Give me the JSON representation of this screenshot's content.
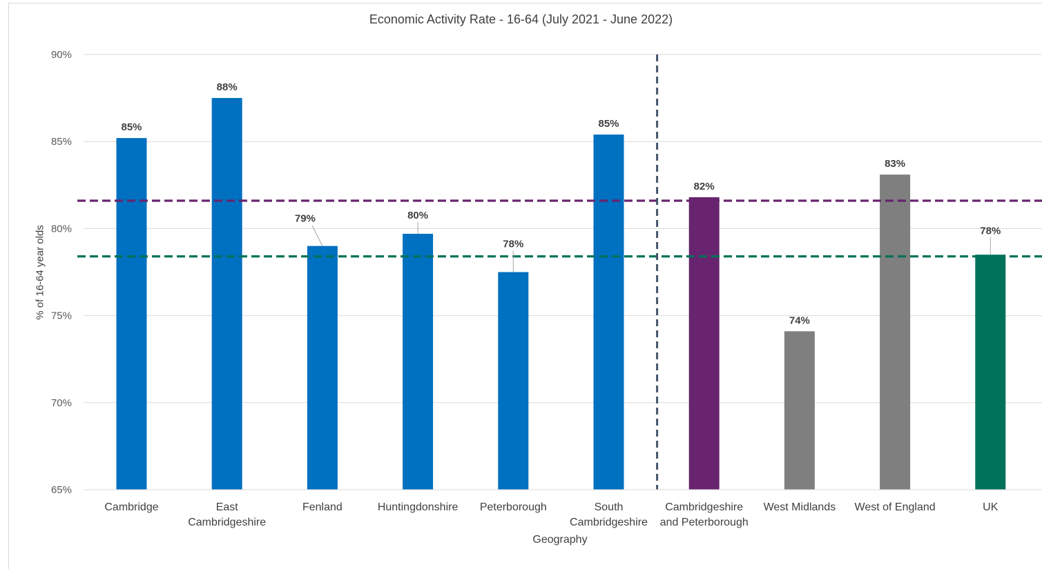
{
  "chart_data": {
    "type": "bar",
    "title": "Economic Activity Rate - 16-64 (July 2021 - June 2022)",
    "xlabel": "Geography",
    "ylabel": "% of 16-64 year olds",
    "ylim": [
      65,
      90
    ],
    "yticks": [
      "65%",
      "70%",
      "75%",
      "80%",
      "85%",
      "90%"
    ],
    "ytick_values": [
      65,
      70,
      75,
      80,
      85,
      90
    ],
    "grid": true,
    "legend": "none",
    "categories": [
      [
        "Cambridge"
      ],
      [
        "East",
        "Cambridgeshire"
      ],
      [
        "Fenland"
      ],
      [
        "Huntingdonshire"
      ],
      [
        "Peterborough"
      ],
      [
        "South",
        "Cambridgeshire"
      ],
      [
        "Cambridgeshire",
        "and Peterborough"
      ],
      [
        "West Midlands"
      ],
      [
        "West of England"
      ],
      [
        "UK"
      ]
    ],
    "values": [
      85.2,
      87.5,
      79.0,
      79.7,
      77.5,
      85.4,
      81.8,
      74.1,
      83.1,
      78.5
    ],
    "data_labels": [
      "85%",
      "88%",
      "79%",
      "80%",
      "78%",
      "85%",
      "82%",
      "74%",
      "83%",
      "78%"
    ],
    "bar_colors": [
      "#0070c0",
      "#0070c0",
      "#0070c0",
      "#0070c0",
      "#0070c0",
      "#0070c0",
      "#68246e",
      "#7f7f7f",
      "#7f7f7f",
      "#00725a"
    ],
    "reference_lines": [
      {
        "type": "horizontal",
        "value": 81.6,
        "color": "#68246e",
        "style": "dashed"
      },
      {
        "type": "horizontal",
        "value": 78.4,
        "color": "#00725a",
        "style": "dashed"
      },
      {
        "type": "vertical",
        "between_categories": [
          5,
          6
        ],
        "color": "#44546a",
        "style": "dashed"
      }
    ]
  }
}
